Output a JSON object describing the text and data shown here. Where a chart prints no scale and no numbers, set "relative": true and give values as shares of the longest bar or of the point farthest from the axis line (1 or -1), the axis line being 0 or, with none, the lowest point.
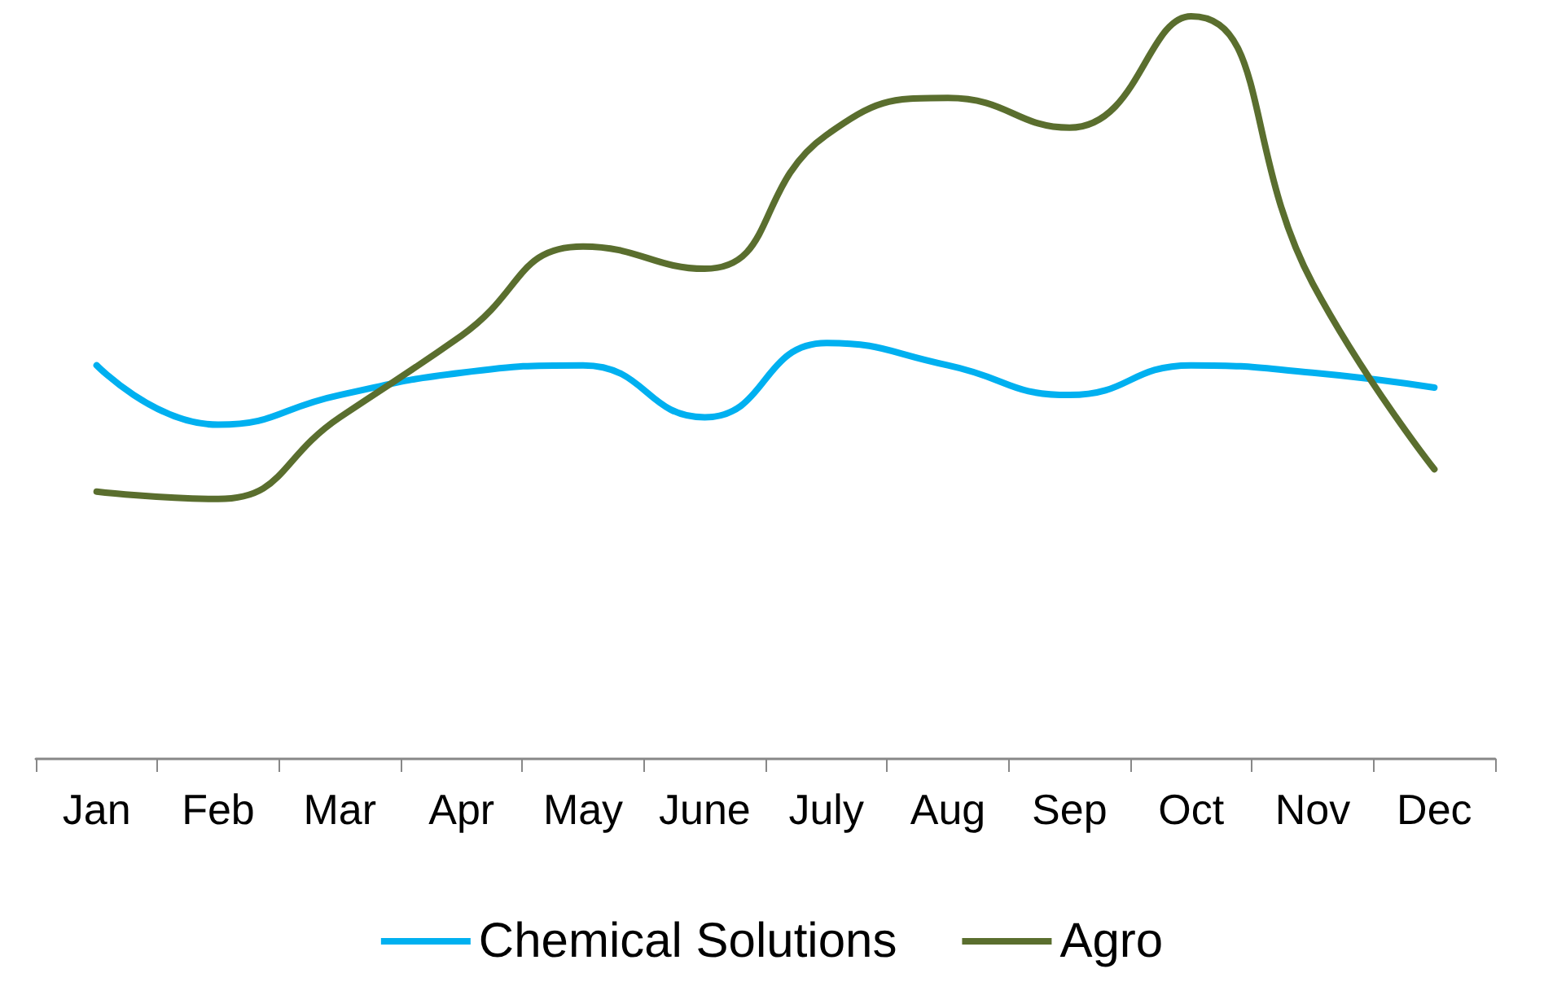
{
  "chart_data": {
    "type": "line",
    "relative": true,
    "categories": [
      "Jan",
      "Feb",
      "Mar",
      "Apr",
      "May",
      "June",
      "July",
      "Aug",
      "Sep",
      "Oct",
      "Nov",
      "Dec"
    ],
    "series": [
      {
        "name": "Chemical Solutions",
        "color": "#00b0f0",
        "values": [
          0.53,
          0.45,
          0.49,
          0.52,
          0.53,
          0.46,
          0.56,
          0.53,
          0.49,
          0.53,
          0.52,
          0.5
        ]
      },
      {
        "name": "Agro",
        "color": "#5a6e2e",
        "values": [
          0.36,
          0.35,
          0.46,
          0.57,
          0.69,
          0.66,
          0.84,
          0.89,
          0.85,
          1,
          0.64,
          0.39
        ]
      }
    ],
    "legend": "bottom",
    "grid": false,
    "marker": "none",
    "line_style": "solid"
  }
}
